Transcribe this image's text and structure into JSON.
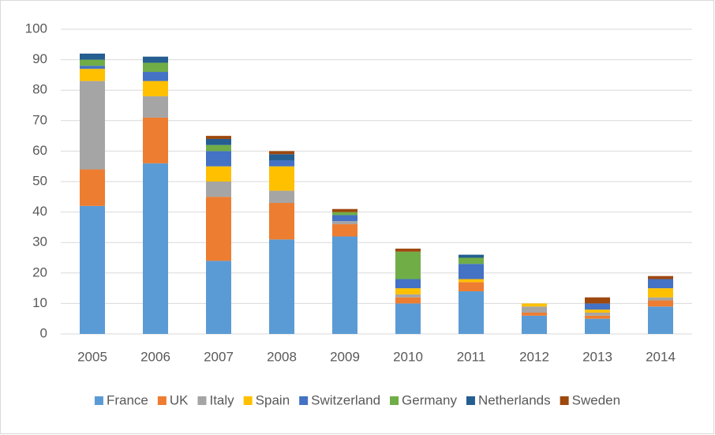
{
  "chart_data": {
    "type": "stacked-bar",
    "categories": [
      "2005",
      "2006",
      "2007",
      "2008",
      "2009",
      "2010",
      "2011",
      "2012",
      "2013",
      "2014"
    ],
    "series": [
      {
        "name": "France",
        "color": "#5b9bd5",
        "values": [
          42,
          56,
          24,
          31,
          32,
          10,
          14,
          6,
          5,
          9
        ]
      },
      {
        "name": "UK",
        "color": "#ed7d31",
        "values": [
          12,
          15,
          21,
          12,
          4,
          2,
          3,
          1,
          1,
          2
        ]
      },
      {
        "name": "Italy",
        "color": "#a5a5a5",
        "values": [
          29,
          7,
          5,
          4,
          1,
          1,
          0,
          2,
          1,
          1
        ]
      },
      {
        "name": "Spain",
        "color": "#ffc000",
        "values": [
          4,
          5,
          5,
          8,
          0,
          2,
          1,
          1,
          1,
          3
        ]
      },
      {
        "name": "Switzerland",
        "color": "#4472c4",
        "values": [
          1,
          3,
          5,
          2,
          2,
          3,
          5,
          0,
          2,
          3
        ]
      },
      {
        "name": "Germany",
        "color": "#70ad47",
        "values": [
          2,
          3,
          2,
          0,
          1,
          9,
          2,
          0,
          0,
          0
        ]
      },
      {
        "name": "Netherlands",
        "color": "#255e91",
        "values": [
          2,
          2,
          2,
          2,
          0,
          0,
          1,
          0,
          0,
          0
        ]
      },
      {
        "name": "Sweden",
        "color": "#9e480e",
        "values": [
          0,
          0,
          1,
          1,
          1,
          1,
          0,
          0,
          2,
          1
        ]
      }
    ],
    "ylim": [
      0,
      100
    ],
    "yticks": [
      0,
      10,
      20,
      30,
      40,
      50,
      60,
      70,
      80,
      90,
      100
    ],
    "grid": true,
    "legend": "bottom"
  }
}
